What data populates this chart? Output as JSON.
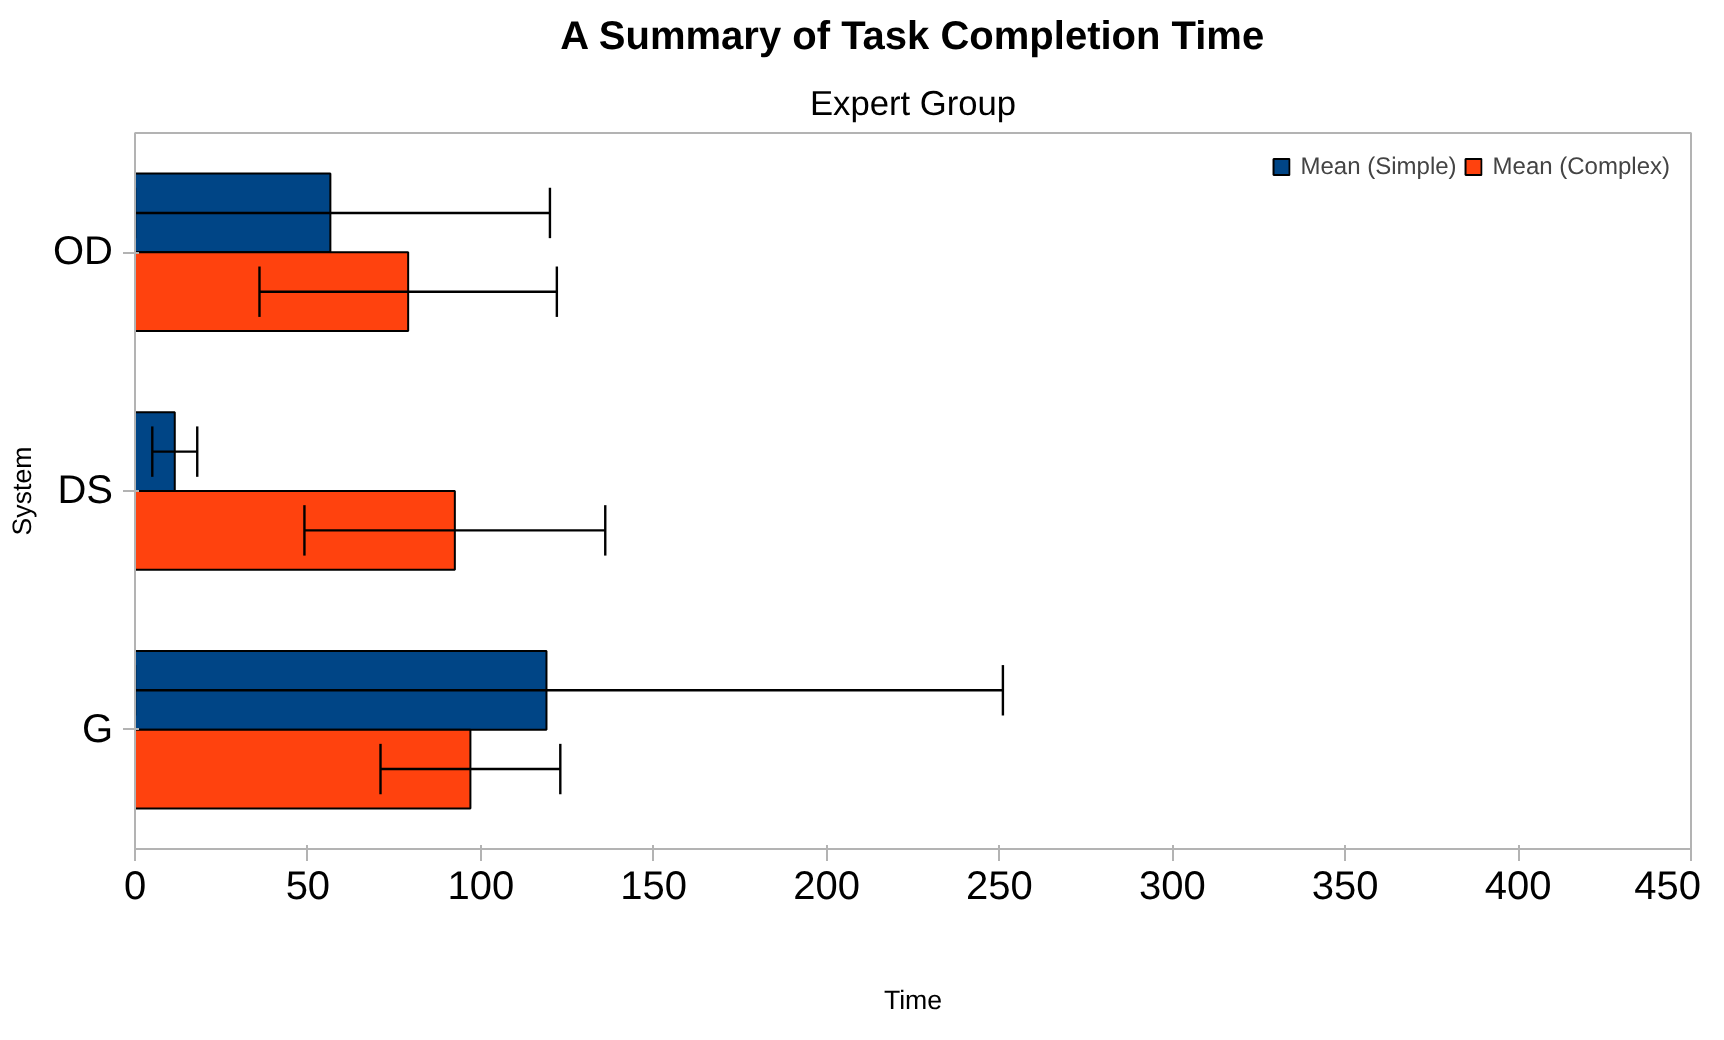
{
  "chart_data": {
    "type": "bar",
    "orientation": "horizontal",
    "title": "A Summary of Task Completion Time",
    "subtitle": "Expert Group",
    "xlabel": "Time",
    "ylabel": "System",
    "categories": [
      "OD",
      "DS",
      "G"
    ],
    "series": [
      {
        "name": "Mean (Simple)",
        "color": "#004586",
        "values": [
          56.5,
          11.5,
          119
        ],
        "errors": [
          [
            0,
            120
          ],
          [
            5,
            18
          ],
          [
            0,
            251
          ]
        ]
      },
      {
        "name": "Mean (Complex)",
        "color": "#ff420e",
        "values": [
          79,
          92.5,
          97
        ],
        "errors": [
          [
            36,
            122
          ],
          [
            49,
            136
          ],
          [
            71,
            123
          ]
        ]
      }
    ],
    "xlim": [
      0,
      450
    ],
    "xticks": [
      0,
      50,
      100,
      150,
      200,
      250,
      300,
      350,
      400,
      450
    ],
    "grid": false,
    "legend": "top right"
  }
}
